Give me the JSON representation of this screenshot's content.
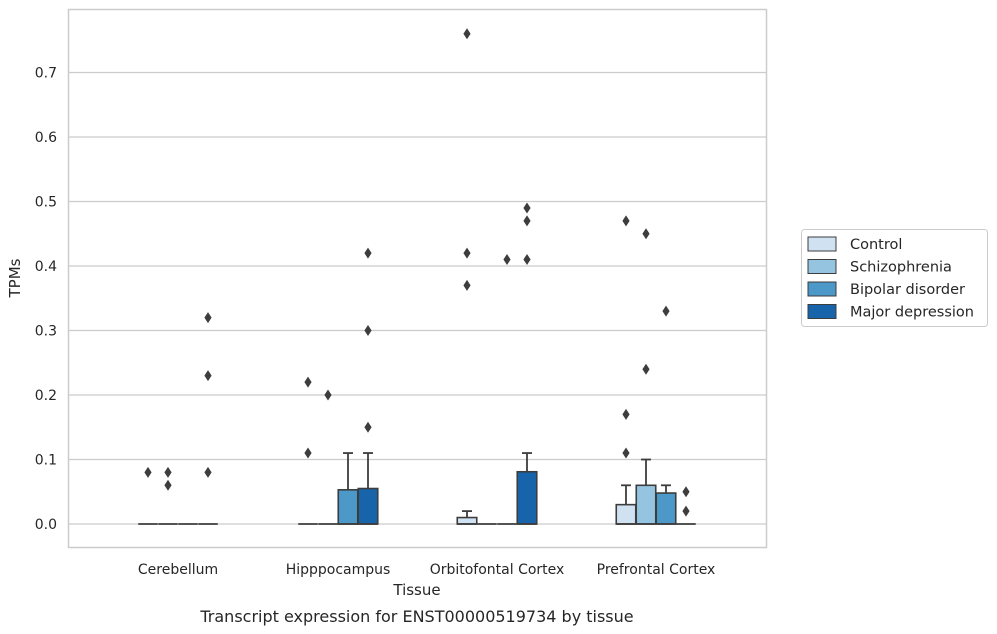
{
  "chart_data": {
    "type": "box",
    "title": "",
    "caption": "Transcript expression for ENST00000519734 by tissue",
    "xlabel": "Tissue",
    "ylabel": "TPMs",
    "ylim": [
      -0.037,
      0.8
    ],
    "yticks": [
      0.0,
      0.1,
      0.2,
      0.3,
      0.4,
      0.5,
      0.6,
      0.7
    ],
    "ytick_labels": [
      "0.0",
      "0.1",
      "0.2",
      "0.3",
      "0.4",
      "0.5",
      "0.6",
      "0.7"
    ],
    "grid": "horizontal",
    "legend_position": "right",
    "categories": [
      "Cerebellum",
      "Hipppocampus",
      "Orbitofontal Cortex",
      "Prefrontal Cortex"
    ],
    "series": [
      {
        "name": "Control",
        "color": "#d0e1f2",
        "boxes": [
          {
            "q1": 0,
            "median": 0,
            "q3": 0,
            "whisker_low": 0,
            "whisker_high": 0,
            "outliers": [
              0.08
            ]
          },
          {
            "q1": 0,
            "median": 0,
            "q3": 0,
            "whisker_low": 0,
            "whisker_high": 0,
            "outliers": [
              0.22,
              0.11
            ]
          },
          {
            "q1": 0,
            "median": 0,
            "q3": 0.01,
            "whisker_low": 0,
            "whisker_high": 0.02,
            "outliers": [
              0.76,
              0.42,
              0.37
            ]
          },
          {
            "q1": 0,
            "median": 0,
            "q3": 0.03,
            "whisker_low": 0,
            "whisker_high": 0.06,
            "outliers": [
              0.47,
              0.17,
              0.11
            ]
          }
        ]
      },
      {
        "name": "Schizophrenia",
        "color": "#94c4df",
        "boxes": [
          {
            "q1": 0,
            "median": 0,
            "q3": 0,
            "whisker_low": 0,
            "whisker_high": 0,
            "outliers": [
              0.08,
              0.06
            ]
          },
          {
            "q1": 0,
            "median": 0,
            "q3": 0,
            "whisker_low": 0,
            "whisker_high": 0,
            "outliers": [
              0.2
            ]
          },
          {
            "q1": 0,
            "median": 0,
            "q3": 0,
            "whisker_low": 0,
            "whisker_high": 0,
            "outliers": []
          },
          {
            "q1": 0,
            "median": 0,
            "q3": 0.06,
            "whisker_low": 0,
            "whisker_high": 0.1,
            "outliers": [
              0.45,
              0.24
            ]
          }
        ]
      },
      {
        "name": "Bipolar disorder",
        "color": "#4b98c9",
        "boxes": [
          {
            "q1": 0,
            "median": 0,
            "q3": 0,
            "whisker_low": 0,
            "whisker_high": 0,
            "outliers": []
          },
          {
            "q1": 0,
            "median": 0,
            "q3": 0.053,
            "whisker_low": 0,
            "whisker_high": 0.11,
            "outliers": []
          },
          {
            "q1": 0,
            "median": 0,
            "q3": 0,
            "whisker_low": 0,
            "whisker_high": 0,
            "outliers": [
              0.41
            ]
          },
          {
            "q1": 0,
            "median": 0,
            "q3": 0.048,
            "whisker_low": 0,
            "whisker_high": 0.06,
            "outliers": [
              0.33
            ]
          }
        ]
      },
      {
        "name": "Major depression",
        "color": "#1764ab",
        "boxes": [
          {
            "q1": 0,
            "median": 0,
            "q3": 0,
            "whisker_low": 0,
            "whisker_high": 0,
            "outliers": [
              0.32,
              0.23,
              0.08
            ]
          },
          {
            "q1": 0,
            "median": 0,
            "q3": 0.055,
            "whisker_low": 0,
            "whisker_high": 0.11,
            "outliers": [
              0.42,
              0.3,
              0.15
            ]
          },
          {
            "q1": 0,
            "median": 0,
            "q3": 0.081,
            "whisker_low": 0,
            "whisker_high": 0.11,
            "outliers": [
              0.49,
              0.47,
              0.41
            ]
          },
          {
            "q1": 0,
            "median": 0,
            "q3": 0,
            "whisker_low": 0,
            "whisker_high": 0,
            "outliers": [
              0.05,
              0.02
            ]
          }
        ]
      }
    ]
  }
}
